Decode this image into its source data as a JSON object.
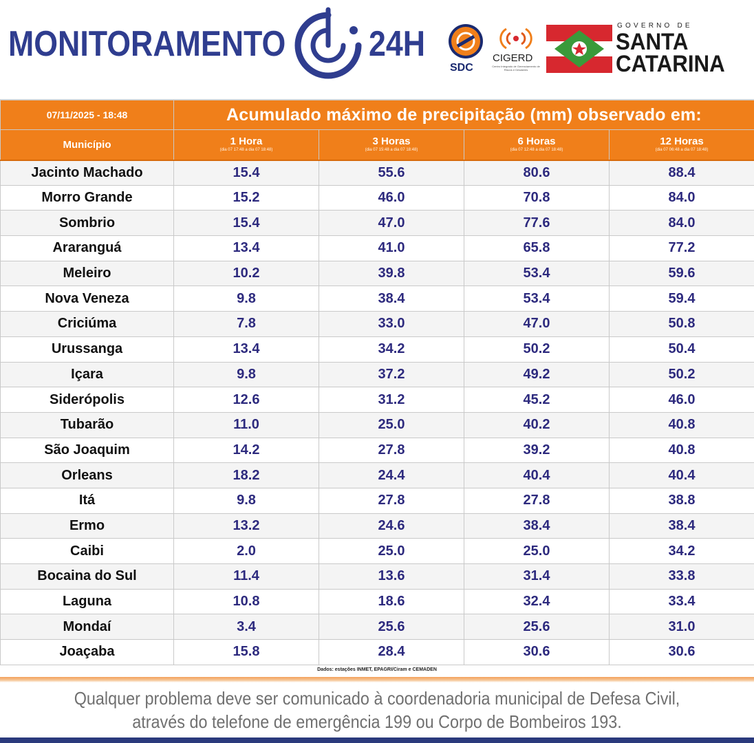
{
  "header": {
    "brand_title": "MONITORAMENTO",
    "brand_suffix": "24H",
    "sdc_label": "SDC",
    "cigerd_label": "CIGERD",
    "cigerd_subtitle": "Centro Integrado de Gerenciamento de Riscos e Desastres",
    "gov_label": "GOVERNO DE",
    "state_line1": "SANTA",
    "state_line2": "CATARINA",
    "colors": {
      "brand_blue": "#2f3d8f",
      "sdc_orange": "#f07f1a",
      "sc_red": "#d7282f",
      "sc_green": "#3a9a3a"
    }
  },
  "table": {
    "datetime": "07/11/2025 - 18:48",
    "title": "Acumulado máximo de precipitação (mm) observado em:",
    "municipio_header": "Município",
    "columns": [
      {
        "label": "1 Hora",
        "range": "(dia 07 17:48 a dia 07 18:48)"
      },
      {
        "label": "3 Horas",
        "range": "(dia 07 15:48 a dia 07 18:48)"
      },
      {
        "label": "6 Horas",
        "range": "(dia 07 12:48 a dia 07 18:48)"
      },
      {
        "label": "12 Horas",
        "range": "(dia 07 06:48 a dia 07 18:48)"
      }
    ],
    "rows": [
      {
        "municipio": "Jacinto Machado",
        "values": [
          "15.4",
          "55.6",
          "80.6",
          "88.4"
        ]
      },
      {
        "municipio": "Morro Grande",
        "values": [
          "15.2",
          "46.0",
          "70.8",
          "84.0"
        ]
      },
      {
        "municipio": "Sombrio",
        "values": [
          "15.4",
          "47.0",
          "77.6",
          "84.0"
        ]
      },
      {
        "municipio": "Araranguá",
        "values": [
          "13.4",
          "41.0",
          "65.8",
          "77.2"
        ]
      },
      {
        "municipio": "Meleiro",
        "values": [
          "10.2",
          "39.8",
          "53.4",
          "59.6"
        ]
      },
      {
        "municipio": "Nova Veneza",
        "values": [
          "9.8",
          "38.4",
          "53.4",
          "59.4"
        ]
      },
      {
        "municipio": "Criciúma",
        "values": [
          "7.8",
          "33.0",
          "47.0",
          "50.8"
        ]
      },
      {
        "municipio": "Urussanga",
        "values": [
          "13.4",
          "34.2",
          "50.2",
          "50.4"
        ]
      },
      {
        "municipio": "Içara",
        "values": [
          "9.8",
          "37.2",
          "49.2",
          "50.2"
        ]
      },
      {
        "municipio": "Siderópolis",
        "values": [
          "12.6",
          "31.2",
          "45.2",
          "46.0"
        ]
      },
      {
        "municipio": "Tubarão",
        "values": [
          "11.0",
          "25.0",
          "40.2",
          "40.8"
        ]
      },
      {
        "municipio": "São Joaquim",
        "values": [
          "14.2",
          "27.8",
          "39.2",
          "40.8"
        ]
      },
      {
        "municipio": "Orleans",
        "values": [
          "18.2",
          "24.4",
          "40.4",
          "40.4"
        ]
      },
      {
        "municipio": "Itá",
        "values": [
          "9.8",
          "27.8",
          "27.8",
          "38.8"
        ]
      },
      {
        "municipio": "Ermo",
        "values": [
          "13.2",
          "24.6",
          "38.4",
          "38.4"
        ]
      },
      {
        "municipio": "Caibi",
        "values": [
          "2.0",
          "25.0",
          "25.0",
          "34.2"
        ]
      },
      {
        "municipio": "Bocaina do Sul",
        "values": [
          "11.4",
          "13.6",
          "31.4",
          "33.8"
        ]
      },
      {
        "municipio": "Laguna",
        "values": [
          "10.8",
          "18.6",
          "32.4",
          "33.4"
        ]
      },
      {
        "municipio": "Mondaí",
        "values": [
          "3.4",
          "25.6",
          "25.6",
          "31.0"
        ]
      },
      {
        "municipio": "Joaçaba",
        "values": [
          "15.8",
          "28.4",
          "30.6",
          "30.6"
        ]
      }
    ],
    "source_note": "Dados: estações INMET, EPAGRI/Ciram e CEMADEN"
  },
  "footer": {
    "line1": "Qualquer problema deve ser comunicado à coordenadoria municipal de Defesa Civil,",
    "line2": "através do telefone de emergência 199 ou Corpo de Bombeiros 193."
  }
}
